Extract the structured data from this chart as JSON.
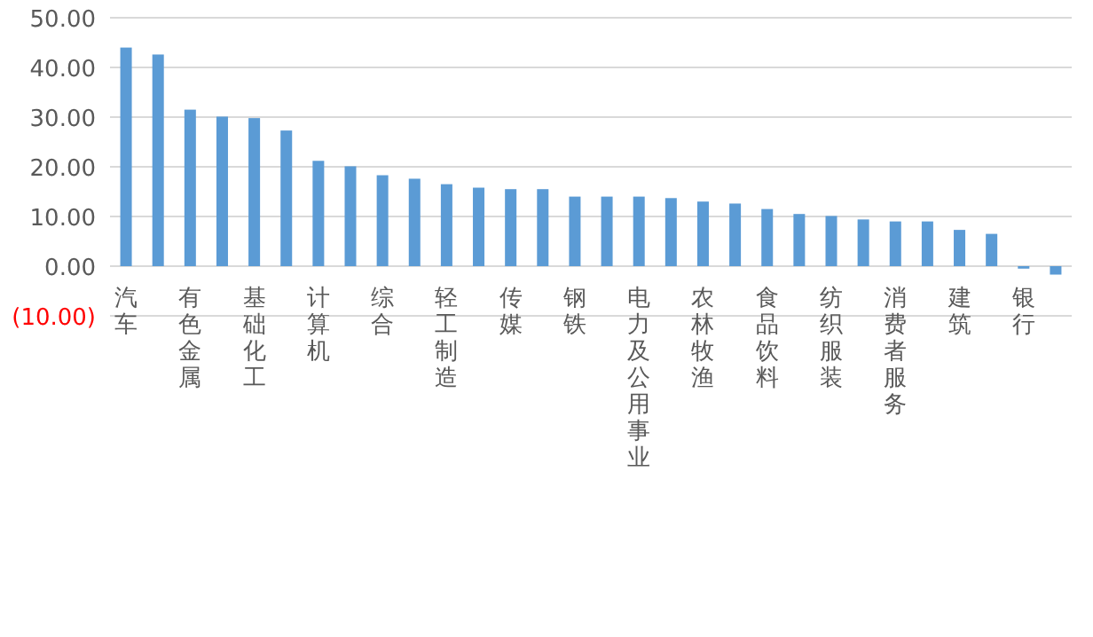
{
  "chart_data": {
    "type": "bar",
    "categories": [
      "汽车",
      null,
      "有色金属",
      null,
      "基础化工",
      null,
      "计算机",
      null,
      "综合",
      null,
      "轻工制造",
      null,
      "传媒",
      null,
      "钢铁",
      null,
      "电力及公用事业",
      null,
      "农林牧渔",
      null,
      "食品饮料",
      null,
      "纺织服装",
      null,
      "消费者服务",
      null,
      "建筑",
      null,
      "银行",
      null
    ],
    "values": [
      44.0,
      42.6,
      31.5,
      30.1,
      29.8,
      27.3,
      21.2,
      20.1,
      18.3,
      17.6,
      16.5,
      15.8,
      15.5,
      15.5,
      14.0,
      14.0,
      14.0,
      13.7,
      13.0,
      12.6,
      11.5,
      10.5,
      10.1,
      9.4,
      9.0,
      9.0,
      7.3,
      6.5,
      -0.5,
      -1.7
    ],
    "color": "#5b9bd5",
    "ylim": [
      -10,
      50
    ],
    "yticks": [
      {
        "value": -10,
        "label": "(10.00)"
      },
      {
        "value": 0,
        "label": "0.00"
      },
      {
        "value": 10,
        "label": "10.00"
      },
      {
        "value": 20,
        "label": "20.00"
      },
      {
        "value": 30,
        "label": "30.00"
      },
      {
        "value": 40,
        "label": "40.00"
      },
      {
        "value": 50,
        "label": "50.00"
      }
    ],
    "grid": "y"
  }
}
